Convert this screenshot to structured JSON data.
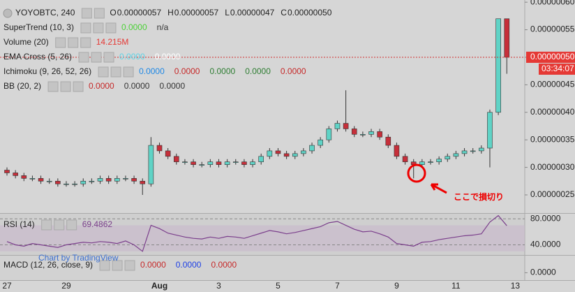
{
  "chart_data": {
    "type": "candlestick",
    "symbol": "YOYOBTC, 240",
    "ohlc_legend": [
      {
        "label": "O",
        "value": "0.00000057"
      },
      {
        "label": "H",
        "value": "0.00000057"
      },
      {
        "label": "L",
        "value": "0.00000047"
      },
      {
        "label": "C",
        "value": "0.00000050"
      }
    ],
    "indicators": [
      {
        "name": "SuperTrend (10, 3)",
        "values": [
          {
            "text": "0.0000",
            "color": "#4cd137"
          },
          {
            "text": "n/a",
            "color": "#333333"
          }
        ]
      },
      {
        "name": "Volume (20)",
        "values": [
          {
            "text": "14.215M",
            "color": "#e53935"
          }
        ]
      },
      {
        "name": "EMA Cross (5, 26)",
        "values": [
          {
            "text": "0.0000",
            "color": "#5fd3e6"
          },
          {
            "text": "0.0000",
            "color": "#ffffff"
          }
        ]
      },
      {
        "name": "Ichimoku (9, 26, 52, 26)",
        "values": [
          {
            "text": "0.0000",
            "color": "#1e88e5"
          },
          {
            "text": "0.0000",
            "color": "#c62828"
          },
          {
            "text": "0.0000",
            "color": "#2e7d32"
          },
          {
            "text": "0.0000",
            "color": "#2e7d32"
          },
          {
            "text": "0.0000",
            "color": "#c62828"
          }
        ]
      },
      {
        "name": "BB (20, 2)",
        "values": [
          {
            "text": "0.0000",
            "color": "#c62828"
          },
          {
            "text": "0.0000",
            "color": "#333333"
          },
          {
            "text": "0.0000",
            "color": "#333333"
          }
        ]
      }
    ],
    "categories": [
      "27",
      null,
      null,
      null,
      null,
      null,
      null,
      "29",
      null,
      null,
      null,
      null,
      null,
      null,
      null,
      null,
      null,
      null,
      "Aug",
      null,
      null,
      null,
      null,
      null,
      null,
      "3",
      null,
      null,
      null,
      null,
      null,
      null,
      "5",
      null,
      null,
      null,
      null,
      null,
      null,
      "7",
      null,
      null,
      null,
      null,
      null,
      null,
      "9",
      null,
      null,
      null,
      null,
      null,
      null,
      "11",
      null,
      null,
      null,
      null,
      null,
      null,
      "13"
    ],
    "open": [
      2.95e-07,
      2.9e-07,
      2.85e-07,
      2.8e-07,
      2.8e-07,
      2.75e-07,
      2.75e-07,
      2.7e-07,
      2.7e-07,
      2.7e-07,
      2.75e-07,
      2.75e-07,
      2.8e-07,
      2.75e-07,
      2.8e-07,
      2.8e-07,
      2.75e-07,
      2.7e-07,
      3.4e-07,
      3.3e-07,
      3.2e-07,
      3.1e-07,
      3.1e-07,
      3.05e-07,
      3.05e-07,
      3.1e-07,
      3.05e-07,
      3.1e-07,
      3.1e-07,
      3.05e-07,
      3.1e-07,
      3.2e-07,
      3.3e-07,
      3.25e-07,
      3.2e-07,
      3.25e-07,
      3.3e-07,
      3.4e-07,
      3.5e-07,
      3.7e-07,
      3.8e-07,
      3.7e-07,
      3.6e-07,
      3.6e-07,
      3.65e-07,
      3.55e-07,
      3.4e-07,
      3.2e-07,
      3.1e-07,
      3.05e-07,
      3.1e-07,
      3.1e-07,
      3.15e-07,
      3.2e-07,
      3.25e-07,
      3.3e-07,
      3.3e-07,
      3.35e-07,
      4e-07,
      5.7e-07,
      null
    ],
    "high": [
      3e-07,
      2.95e-07,
      2.9e-07,
      2.85e-07,
      2.85e-07,
      2.8e-07,
      2.8e-07,
      2.75e-07,
      2.75e-07,
      2.8e-07,
      2.8e-07,
      2.85e-07,
      2.85e-07,
      2.85e-07,
      2.85e-07,
      2.85e-07,
      2.8e-07,
      3.55e-07,
      3.45e-07,
      3.35e-07,
      3.25e-07,
      3.15e-07,
      3.15e-07,
      3.1e-07,
      3.15e-07,
      3.15e-07,
      3.15e-07,
      3.15e-07,
      3.15e-07,
      3.15e-07,
      3.25e-07,
      3.35e-07,
      3.35e-07,
      3.3e-07,
      3.3e-07,
      3.35e-07,
      3.45e-07,
      3.55e-07,
      3.75e-07,
      3.85e-07,
      4.4e-07,
      3.75e-07,
      3.65e-07,
      3.7e-07,
      3.7e-07,
      3.6e-07,
      3.45e-07,
      3.25e-07,
      3.15e-07,
      3.15e-07,
      3.15e-07,
      3.2e-07,
      3.25e-07,
      3.3e-07,
      3.35e-07,
      3.35e-07,
      3.4e-07,
      4.05e-07,
      5.7e-07,
      5.7e-07,
      null
    ],
    "low": [
      2.85e-07,
      2.8e-07,
      2.75e-07,
      2.75e-07,
      2.7e-07,
      2.7e-07,
      2.65e-07,
      2.65e-07,
      2.65e-07,
      2.65e-07,
      2.7e-07,
      2.7e-07,
      2.7e-07,
      2.7e-07,
      2.75e-07,
      2.7e-07,
      2.5e-07,
      2.65e-07,
      3.25e-07,
      3.15e-07,
      3.05e-07,
      3.05e-07,
      3e-07,
      3e-07,
      3e-07,
      3e-07,
      3e-07,
      3.05e-07,
      3e-07,
      3e-07,
      3.05e-07,
      3.15e-07,
      3.2e-07,
      3.15e-07,
      3.15e-07,
      3.2e-07,
      3.25e-07,
      3.35e-07,
      3.45e-07,
      3.65e-07,
      3.65e-07,
      3.55e-07,
      3.55e-07,
      3.55e-07,
      3.5e-07,
      3.35e-07,
      3.15e-07,
      3.05e-07,
      2.8e-07,
      3e-07,
      3.05e-07,
      3.05e-07,
      3.1e-07,
      3.15e-07,
      3.2e-07,
      3.25e-07,
      3.25e-07,
      3e-07,
      3.95e-07,
      4.7e-07,
      null
    ],
    "close": [
      2.9e-07,
      2.85e-07,
      2.8e-07,
      2.8e-07,
      2.75e-07,
      2.75e-07,
      2.7e-07,
      2.7e-07,
      2.7e-07,
      2.75e-07,
      2.75e-07,
      2.8e-07,
      2.75e-07,
      2.8e-07,
      2.8e-07,
      2.75e-07,
      2.7e-07,
      3.4e-07,
      3.3e-07,
      3.2e-07,
      3.1e-07,
      3.1e-07,
      3.05e-07,
      3.05e-07,
      3.1e-07,
      3.05e-07,
      3.1e-07,
      3.1e-07,
      3.05e-07,
      3.1e-07,
      3.2e-07,
      3.3e-07,
      3.25e-07,
      3.2e-07,
      3.25e-07,
      3.3e-07,
      3.4e-07,
      3.5e-07,
      3.7e-07,
      3.8e-07,
      3.7e-07,
      3.6e-07,
      3.6e-07,
      3.65e-07,
      3.55e-07,
      3.4e-07,
      3.2e-07,
      3.1e-07,
      3.05e-07,
      3.1e-07,
      3.1e-07,
      3.15e-07,
      3.2e-07,
      3.25e-07,
      3.3e-07,
      3.3e-07,
      3.35e-07,
      4e-07,
      5.7e-07,
      5e-07,
      null
    ],
    "up_color": "#5fd3c6",
    "down_color": "#c62f3a",
    "ylim": [
      2.17e-07,
      6.04e-07
    ],
    "yticks": [
      {
        "value": 2.5e-07,
        "label": "0.00000025"
      },
      {
        "value": 3e-07,
        "label": "0.00000030"
      },
      {
        "value": 3.5e-07,
        "label": "0.00000035"
      },
      {
        "value": 4e-07,
        "label": "0.00000040"
      },
      {
        "value": 4.5e-07,
        "label": "0.00000045"
      },
      {
        "value": 5e-07,
        "label": "0.00000050"
      },
      {
        "value": 5.5e-07,
        "label": "0.00000055"
      },
      {
        "value": 6e-07,
        "label": "0.00000060"
      }
    ],
    "last_price": {
      "value": 5e-07,
      "label": "0.00000050"
    },
    "countdown": "03:34:07",
    "annotation": "ここで損切り",
    "watermark": "Chart by TradingView",
    "rsi": {
      "name": "RSI (14)",
      "value_text": "69.4862",
      "color": "#7b3f8c",
      "values": [
        45,
        40,
        38,
        42,
        40,
        38,
        36,
        40,
        42,
        44,
        43,
        45,
        44,
        42,
        46,
        40,
        30,
        70,
        65,
        58,
        55,
        52,
        50,
        49,
        52,
        50,
        53,
        52,
        50,
        54,
        58,
        62,
        60,
        57,
        59,
        62,
        65,
        68,
        74,
        76,
        70,
        64,
        60,
        61,
        57,
        52,
        42,
        40,
        38,
        44,
        45,
        48,
        50,
        52,
        54,
        55,
        57,
        75,
        85,
        69.4862,
        null
      ],
      "ylim": [
        24.4,
        88.9
      ],
      "yticks": [
        {
          "value": 80,
          "label": "80.0000"
        },
        {
          "value": 40,
          "label": "40.0000"
        }
      ]
    },
    "macd": {
      "name": "MACD (12, 26, close, 9)",
      "values": [
        {
          "text": "0.0000",
          "color": "#c62828"
        },
        {
          "text": "0.0000",
          "color": "#1e40e5"
        },
        {
          "text": "0.0000",
          "color": "#c62828"
        }
      ],
      "ylim": [
        -1e-08,
        2.3e-08
      ],
      "yticks": [
        {
          "value": 0,
          "label": "0.0000"
        }
      ]
    }
  }
}
